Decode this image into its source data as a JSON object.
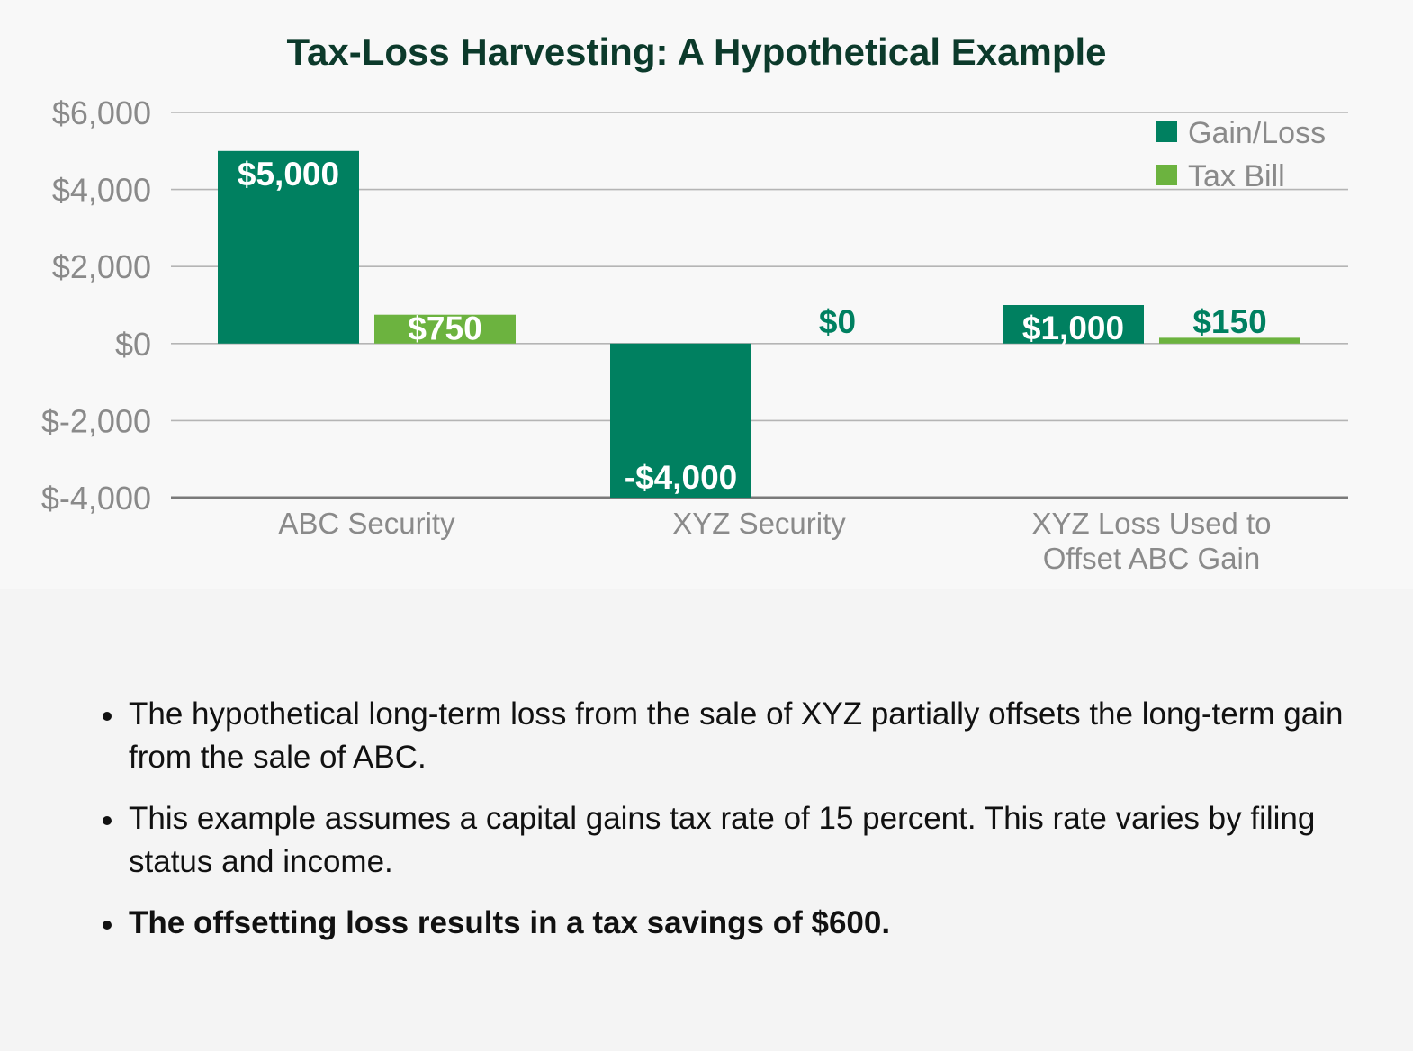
{
  "chart_data": {
    "type": "bar",
    "title": "Tax-Loss Harvesting: A Hypothetical Example",
    "xlabel": "",
    "ylabel": "",
    "ylim": [
      -4000,
      6000
    ],
    "yticks": [
      6000,
      4000,
      2000,
      0,
      -2000,
      -4000
    ],
    "ytick_labels": [
      "$6,000",
      "$4,000",
      "$2,000",
      "$0",
      "$-2,000",
      "$-4,000"
    ],
    "categories": [
      [
        "ABC Security"
      ],
      [
        "XYZ Security"
      ],
      [
        "XYZ Loss Used to",
        "Offset ABC Gain"
      ]
    ],
    "series": [
      {
        "name": "Gain/Loss",
        "color": "#008060",
        "values": [
          5000,
          -4000,
          1000
        ],
        "labels": [
          "$5,000",
          "-$4,000",
          "$1,000"
        ]
      },
      {
        "name": "Tax Bill",
        "color": "#6cb33f",
        "values": [
          750,
          0,
          150
        ],
        "labels": [
          "$750",
          "$0",
          "$150"
        ]
      }
    ],
    "legend_position": "top-right",
    "grid": true,
    "colors": {
      "title": "#0c3a2b",
      "tick_text": "#8a8a8a",
      "grid": "#b5b5b5",
      "axis": "#7a7a7a",
      "label_in_bar": "#ffffff",
      "label_outside": "#008060"
    }
  },
  "notes": [
    {
      "text": "The hypothetical long-term loss from the sale of XYZ partially offsets the long-term gain from the sale of ABC.",
      "bold": false
    },
    {
      "text": "This example assumes a capital gains tax rate of 15 percent. This rate varies by filing status and income.",
      "bold": false
    },
    {
      "text": "The offsetting loss results in a tax savings of $600.",
      "bold": true
    }
  ]
}
